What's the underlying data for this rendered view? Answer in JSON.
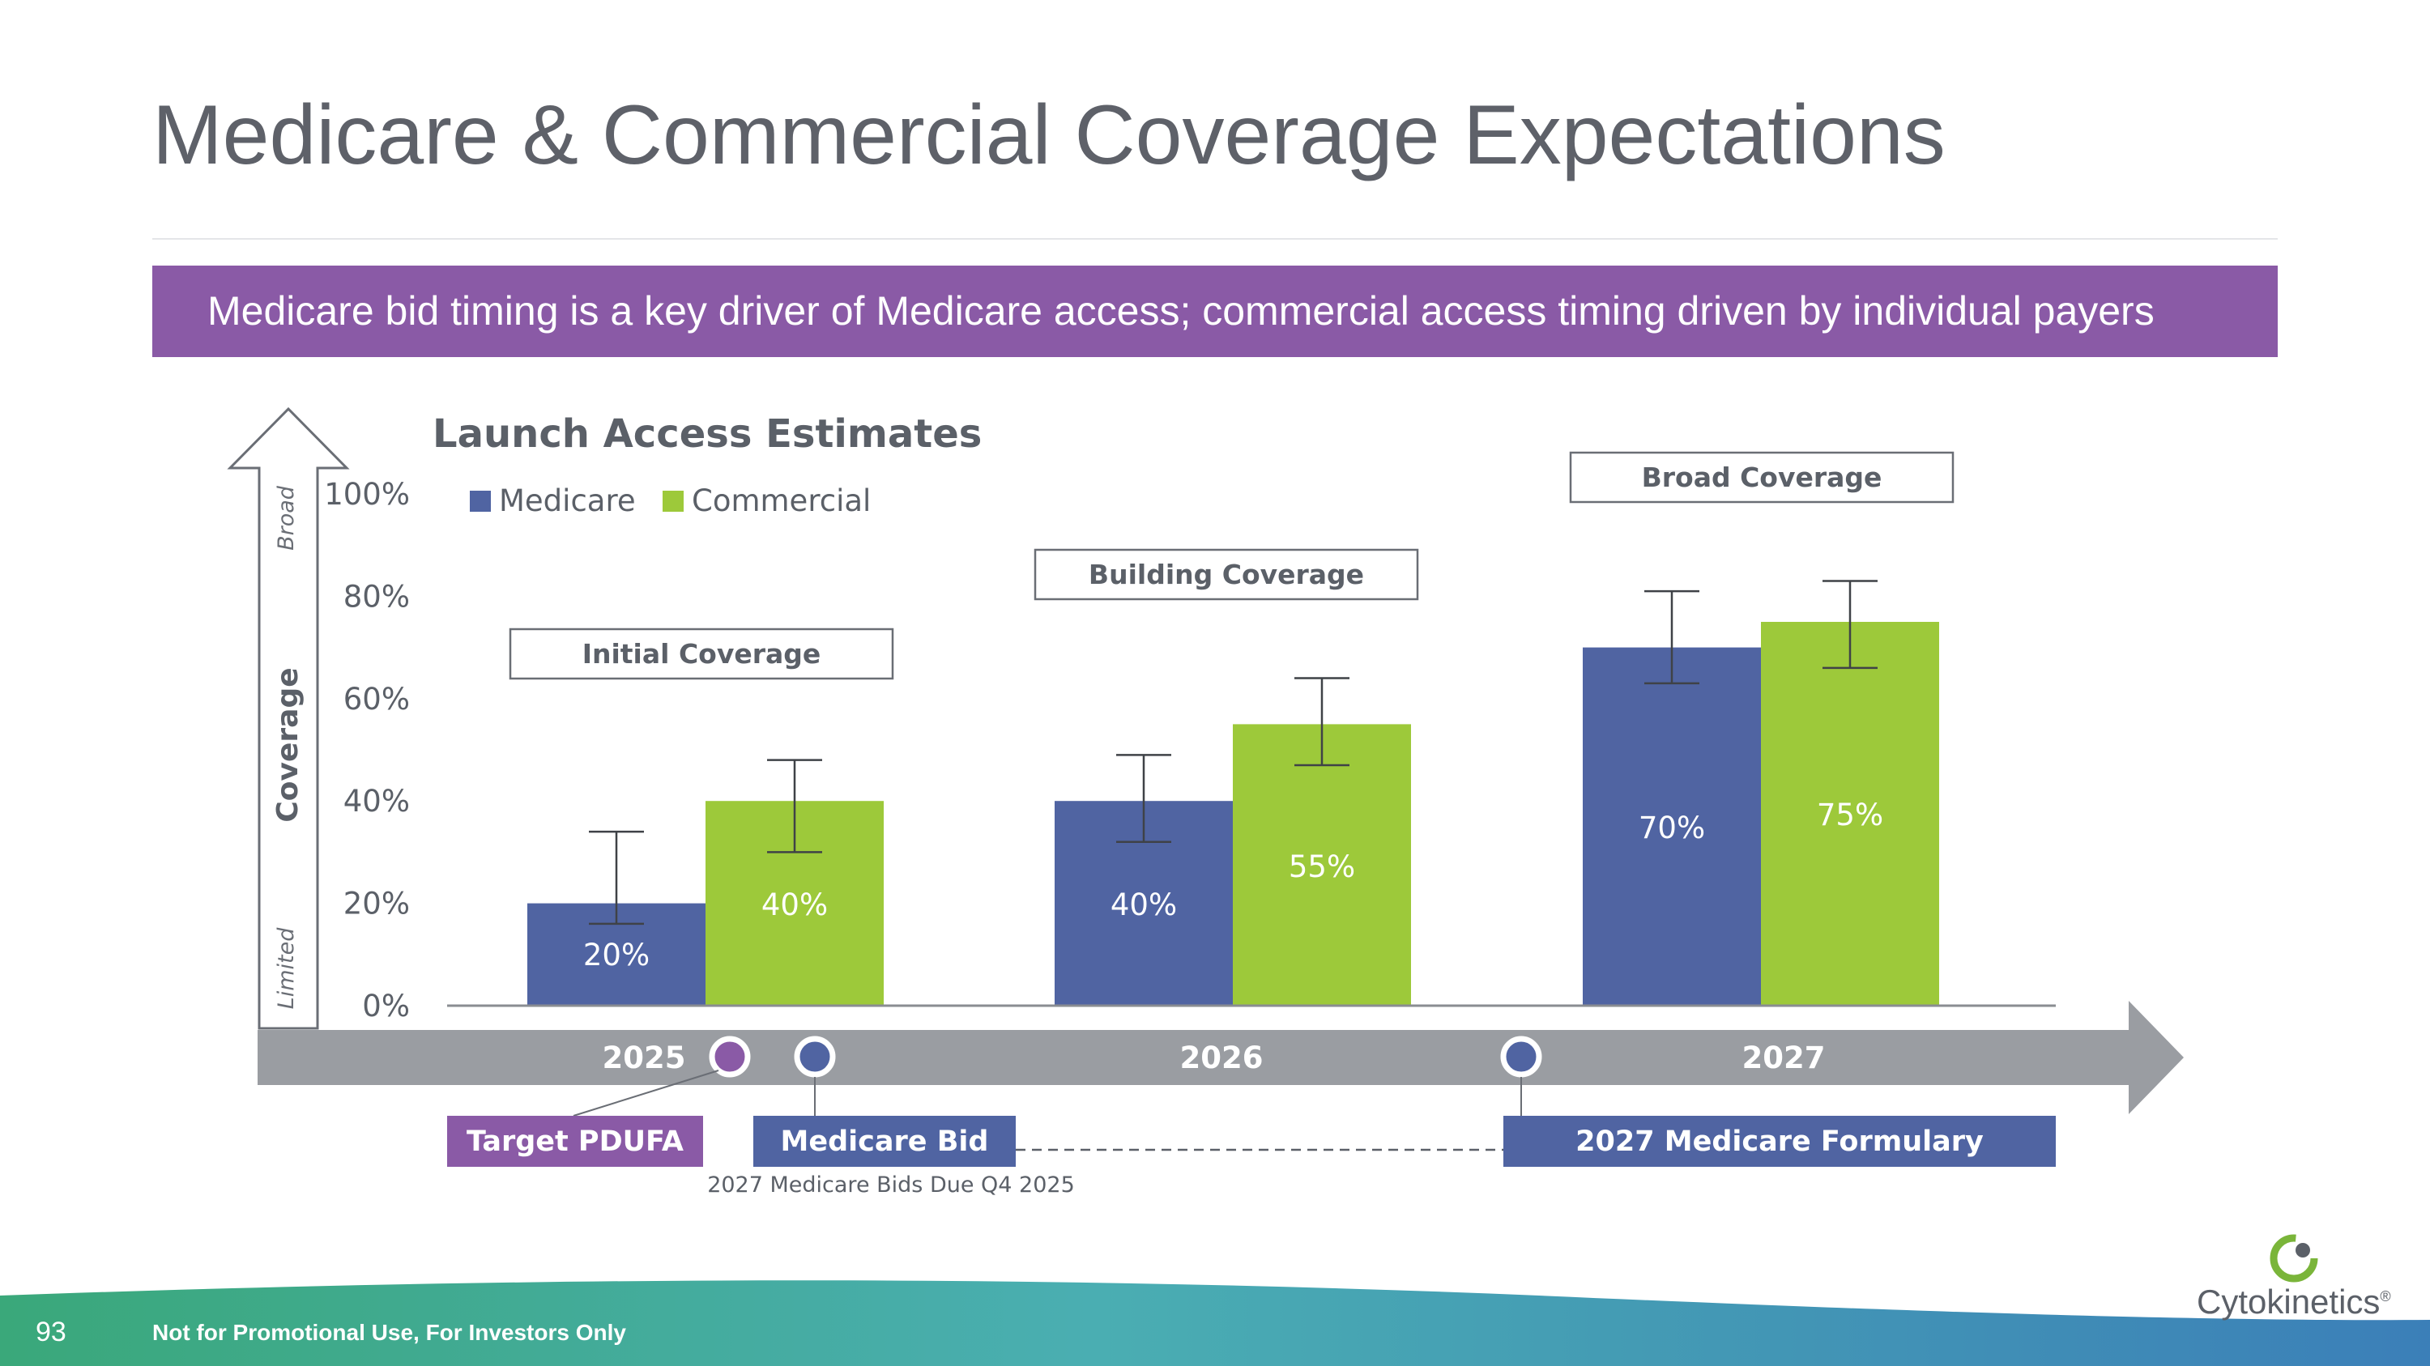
{
  "slide": {
    "title": "Medicare & Commercial Coverage Expectations",
    "banner": "Medicare bid timing is a key driver of Medicare access; commercial access timing driven by individual payers",
    "page_number": "93",
    "footer_note": "Not for Promotional Use, For Investors Only",
    "logo_text": "Cytokinetics",
    "logo_mark": "®"
  },
  "colors": {
    "medicare": "#5064a2",
    "commercial": "#9dc93a",
    "banner": "#8a5aa6",
    "axis_band": "#9a9da2",
    "pdufa": "#8a5aa6"
  },
  "coverage_axis": {
    "title": "Coverage",
    "top_label": "Broad",
    "bottom_label": "Limited"
  },
  "timeline": {
    "years": [
      "2025",
      "2026",
      "2027"
    ],
    "milestones": [
      {
        "label": "Target PDUFA",
        "color": "#8a5aa6"
      },
      {
        "label": "Medicare Bid",
        "note": "2027 Medicare Bids Due Q4 2025",
        "color": "#5064a2"
      },
      {
        "label": "2027 Medicare Formulary",
        "color": "#5064a2"
      }
    ]
  },
  "chart_data": {
    "type": "bar",
    "title": "Launch Access Estimates",
    "categories": [
      "2025",
      "2026",
      "2027"
    ],
    "series": [
      {
        "name": "Medicare",
        "values": [
          20,
          40,
          70
        ],
        "labels": [
          "20%",
          "40%",
          "70%"
        ],
        "error_low": [
          16,
          32,
          63
        ],
        "error_high": [
          34,
          49,
          81
        ]
      },
      {
        "name": "Commercial",
        "values": [
          40,
          55,
          75
        ],
        "labels": [
          "40%",
          "55%",
          "75%"
        ],
        "error_low": [
          30,
          47,
          66
        ],
        "error_high": [
          48,
          64,
          83
        ]
      }
    ],
    "phase_labels": [
      "Initial Coverage",
      "Building Coverage",
      "Broad Coverage"
    ],
    "y_ticks": [
      "0%",
      "20%",
      "40%",
      "60%",
      "80%",
      "100%"
    ],
    "ylim": [
      0,
      100
    ],
    "legend_position": "top-left",
    "xlabel": "",
    "ylabel": "Coverage"
  }
}
